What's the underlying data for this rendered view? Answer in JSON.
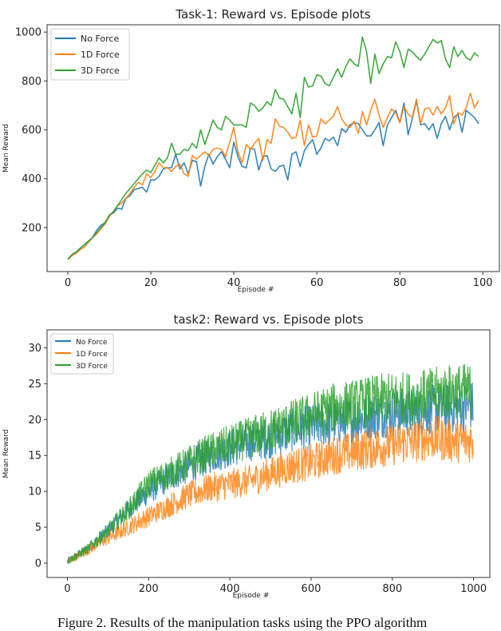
{
  "chart_data": [
    {
      "type": "line",
      "title": "Task-1: Reward vs. Episode plots",
      "xlabel": "Episode #",
      "ylabel": "Mean Reward",
      "xlim": [
        -5,
        104
      ],
      "ylim": [
        20,
        1030
      ],
      "xticks": [
        0,
        20,
        40,
        60,
        80,
        100
      ],
      "yticks": [
        200,
        400,
        600,
        800,
        1000
      ],
      "grid": false,
      "legend": "top-left",
      "x": "episodes 0-99",
      "series": [
        {
          "name": "No Force",
          "color": "#1f77b4",
          "values": [
            70,
            85,
            100,
            115,
            130,
            145,
            160,
            190,
            210,
            220,
            250,
            260,
            280,
            275,
            320,
            330,
            355,
            360,
            365,
            345,
            395,
            395,
            410,
            440,
            445,
            445,
            500,
            440,
            465,
            420,
            475,
            470,
            370,
            450,
            500,
            460,
            490,
            510,
            480,
            445,
            550,
            490,
            450,
            445,
            525,
            520,
            435,
            490,
            495,
            440,
            430,
            450,
            455,
            395,
            500,
            510,
            450,
            515,
            540,
            560,
            500,
            525,
            565,
            555,
            570,
            535,
            605,
            590,
            620,
            630,
            625,
            600,
            575,
            575,
            600,
            630,
            535,
            620,
            650,
            680,
            630,
            710,
            580,
            645,
            720,
            620,
            625,
            600,
            625,
            565,
            625,
            655,
            600,
            650,
            665,
            590,
            680,
            665,
            650,
            625
          ]
        },
        {
          "name": "1D Force",
          "color": "#ff7f0e",
          "values": [
            70,
            85,
            95,
            110,
            120,
            140,
            160,
            175,
            195,
            215,
            245,
            265,
            290,
            300,
            320,
            340,
            365,
            385,
            375,
            420,
            405,
            430,
            465,
            445,
            445,
            430,
            450,
            460,
            420,
            410,
            495,
            480,
            495,
            510,
            495,
            520,
            525,
            520,
            490,
            550,
            610,
            510,
            465,
            540,
            520,
            545,
            565,
            475,
            560,
            545,
            645,
            615,
            610,
            590,
            565,
            570,
            640,
            535,
            620,
            570,
            575,
            645,
            625,
            640,
            655,
            695,
            645,
            620,
            610,
            635,
            585,
            675,
            620,
            680,
            725,
            660,
            610,
            650,
            685,
            670,
            630,
            695,
            665,
            650,
            725,
            625,
            685,
            690,
            660,
            695,
            665,
            690,
            740,
            625,
            670,
            660,
            690,
            750,
            690,
            720
          ]
        },
        {
          "name": "3D Force",
          "color": "#2ca02c",
          "values": [
            70,
            90,
            100,
            115,
            130,
            145,
            160,
            180,
            200,
            220,
            250,
            265,
            290,
            315,
            340,
            360,
            380,
            400,
            420,
            435,
            425,
            455,
            485,
            465,
            485,
            545,
            500,
            500,
            520,
            515,
            545,
            525,
            600,
            540,
            590,
            640,
            610,
            600,
            655,
            640,
            620,
            620,
            620,
            610,
            710,
            700,
            675,
            690,
            715,
            700,
            765,
            730,
            725,
            695,
            665,
            750,
            650,
            815,
            775,
            780,
            825,
            820,
            790,
            780,
            815,
            850,
            815,
            860,
            890,
            870,
            860,
            980,
            920,
            790,
            910,
            830,
            870,
            900,
            895,
            960,
            920,
            855,
            930,
            920,
            900,
            885,
            910,
            940,
            970,
            955,
            965,
            890,
            855,
            940,
            900,
            925,
            895,
            885,
            915,
            900
          ]
        }
      ]
    },
    {
      "type": "line",
      "title": "task2: Reward vs. Episode plots",
      "xlabel": "Episode #",
      "ylabel": "Mean Reward",
      "xlim": [
        -50,
        1040
      ],
      "ylim": [
        -2,
        32.5
      ],
      "xticks": [
        0,
        200,
        400,
        600,
        800,
        1000
      ],
      "yticks": [
        0,
        5,
        10,
        15,
        20,
        25,
        30
      ],
      "grid": false,
      "legend": "top-left",
      "x_knots": [
        0,
        50,
        100,
        150,
        200,
        250,
        300,
        350,
        400,
        450,
        500,
        550,
        600,
        650,
        700,
        750,
        800,
        850,
        900,
        950,
        1000
      ],
      "series": [
        {
          "name": "No Force",
          "color": "#1f77b4",
          "trend": [
            0.3,
            2,
            4.5,
            7.5,
            10,
            12,
            13.5,
            15,
            16,
            17,
            17.5,
            18.5,
            19,
            19.5,
            20,
            20.5,
            21,
            21,
            21.5,
            21.5,
            22
          ],
          "noise_amplitude": 0.13
        },
        {
          "name": "1D Force",
          "color": "#ff7f0e",
          "trend": [
            0.2,
            1.8,
            3.5,
            5,
            6.5,
            8,
            9.5,
            10.5,
            11,
            11.5,
            12.5,
            13.5,
            14,
            15,
            15.5,
            16,
            16.5,
            17,
            17.5,
            17,
            17
          ],
          "noise_amplitude": 0.14
        },
        {
          "name": "3D Force",
          "color": "#2ca02c",
          "trend": [
            0.2,
            2,
            4.5,
            7.5,
            11,
            12.5,
            14,
            15.5,
            16.5,
            17.5,
            18.5,
            19.5,
            20.5,
            21.5,
            22,
            22.5,
            23,
            23,
            23.5,
            24,
            24
          ],
          "noise_amplitude": 0.13
        }
      ]
    }
  ],
  "caption": "Figure 2. Results of the manipulation tasks using the PPO algorithm"
}
